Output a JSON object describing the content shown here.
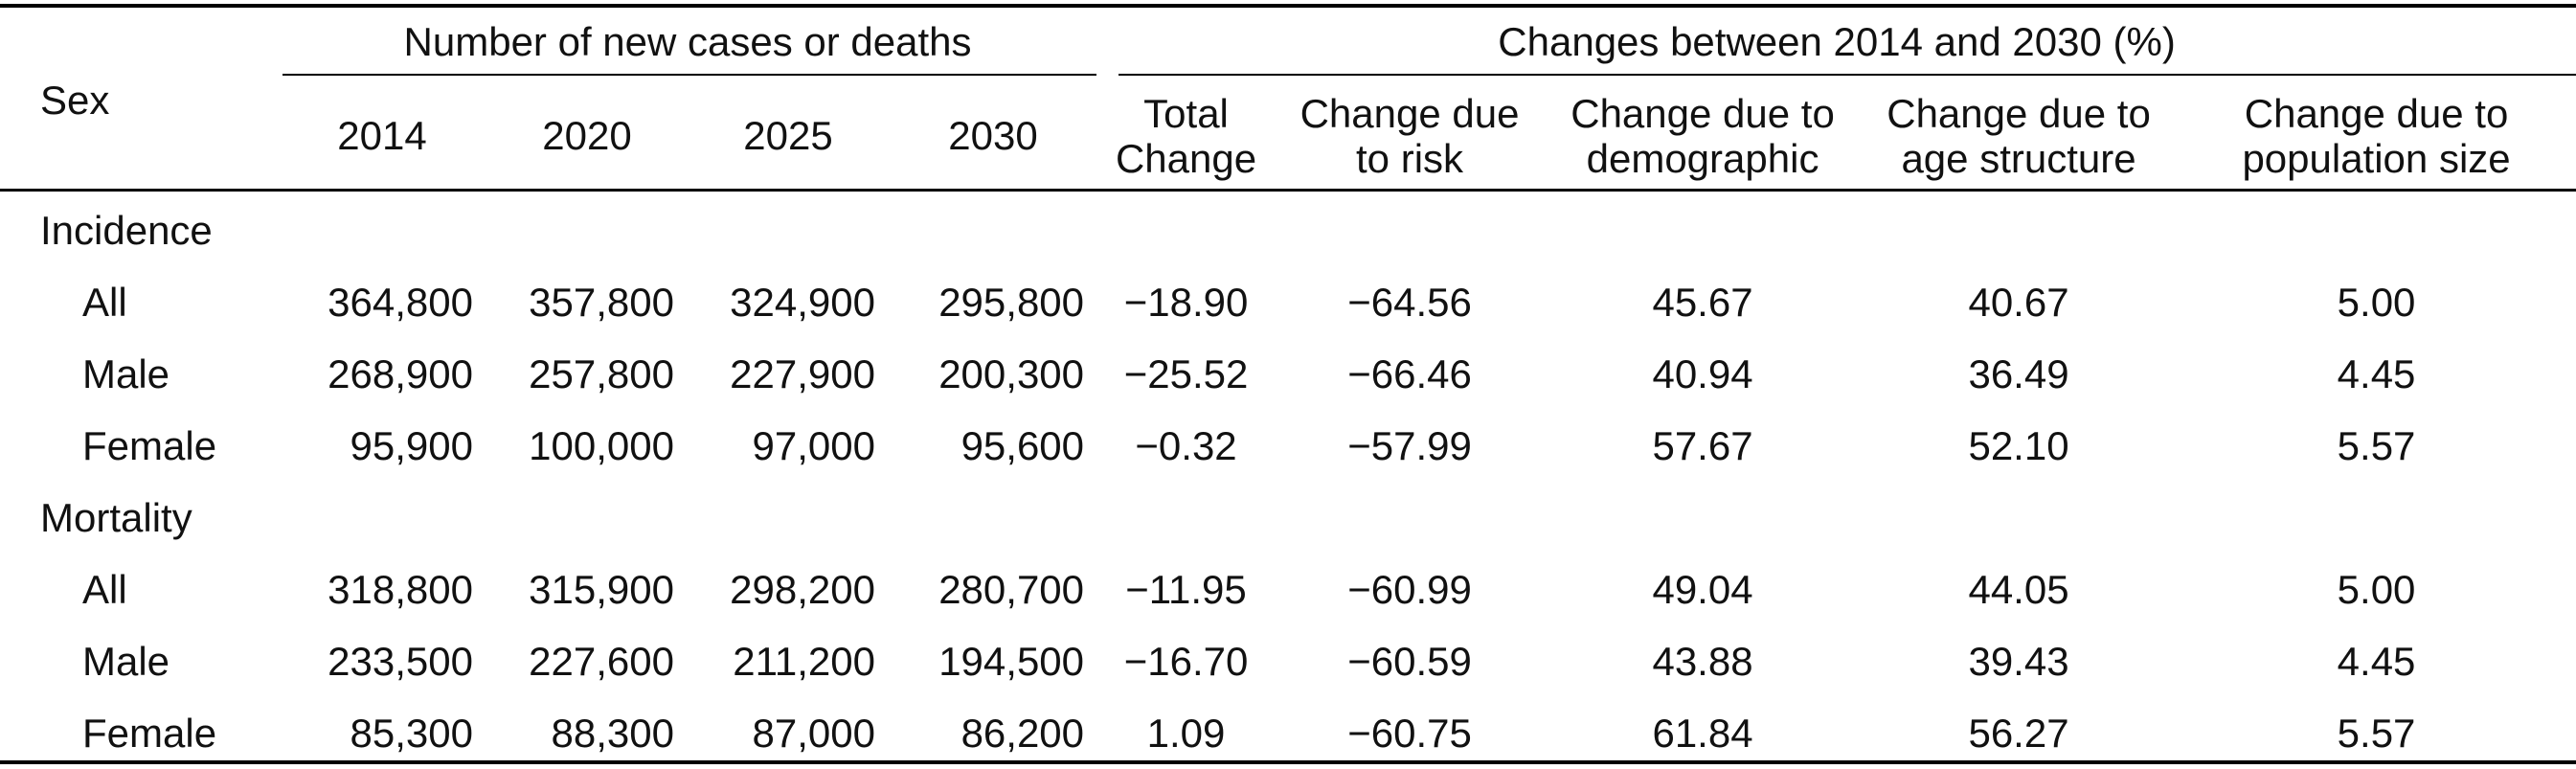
{
  "table": {
    "group_headers": {
      "counts": "Number of new cases or deaths",
      "changes": "Changes between 2014 and 2030 (%)"
    },
    "sex_header": "Sex",
    "year_columns": [
      "2014",
      "2020",
      "2025",
      "2030"
    ],
    "change_columns": [
      {
        "line1": "Total",
        "line2": "Change"
      },
      {
        "line1": "Change due",
        "line2": "to risk"
      },
      {
        "line1": "Change due to",
        "line2": "demographic"
      },
      {
        "line1": "Change due to",
        "line2": "age structure"
      },
      {
        "line1": "Change due to",
        "line2": "population size"
      }
    ],
    "sections": [
      {
        "title": "Incidence",
        "rows": [
          {
            "label": "All",
            "values": [
              "364,800",
              "357,800",
              "324,900",
              "295,800"
            ],
            "changes": [
              "−18.90",
              "−64.56",
              "45.67",
              "40.67",
              "5.00"
            ]
          },
          {
            "label": "Male",
            "values": [
              "268,900",
              "257,800",
              "227,900",
              "200,300"
            ],
            "changes": [
              "−25.52",
              "−66.46",
              "40.94",
              "36.49",
              "4.45"
            ]
          },
          {
            "label": "Female",
            "values": [
              "95,900",
              "100,000",
              "97,000",
              "95,600"
            ],
            "changes": [
              "−0.32",
              "−57.99",
              "57.67",
              "52.10",
              "5.57"
            ]
          }
        ]
      },
      {
        "title": "Mortality",
        "rows": [
          {
            "label": "All",
            "values": [
              "318,800",
              "315,900",
              "298,200",
              "280,700"
            ],
            "changes": [
              "−11.95",
              "−60.99",
              "49.04",
              "44.05",
              "5.00"
            ]
          },
          {
            "label": "Male",
            "values": [
              "233,500",
              "227,600",
              "211,200",
              "194,500"
            ],
            "changes": [
              "−16.70",
              "−60.59",
              "43.88",
              "39.43",
              "4.45"
            ]
          },
          {
            "label": "Female",
            "values": [
              "85,300",
              "88,300",
              "87,000",
              "86,200"
            ],
            "changes": [
              "1.09",
              "−60.75",
              "61.84",
              "56.27",
              "5.57"
            ]
          }
        ]
      }
    ]
  }
}
